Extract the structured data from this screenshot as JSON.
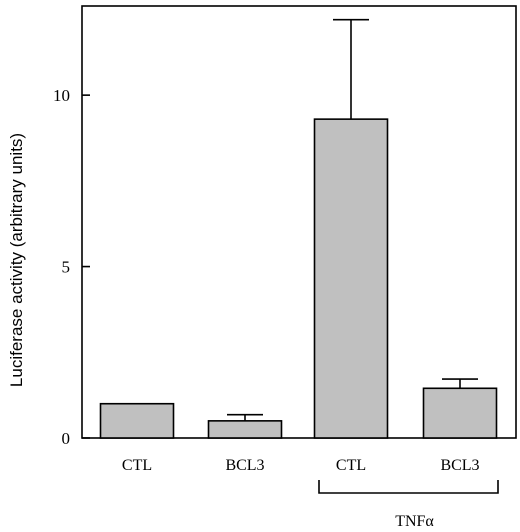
{
  "chart_data": {
    "type": "bar",
    "title": "",
    "xlabel": "",
    "ylabel": "Luciferase activity (arbitrary units)",
    "categories": [
      "CTL",
      "BCL3",
      "CTL",
      "BCL3"
    ],
    "values": [
      1.0,
      0.5,
      9.3,
      1.45
    ],
    "errors": [
      0.0,
      0.18,
      2.9,
      0.27
    ],
    "ylim": [
      0,
      12.6
    ],
    "yticks": [
      0,
      5,
      10
    ],
    "group_labels": [
      {
        "label": "TNFα",
        "categories": [
          2,
          3
        ]
      }
    ],
    "grid": false,
    "bar_color": "#c0c0c0"
  }
}
